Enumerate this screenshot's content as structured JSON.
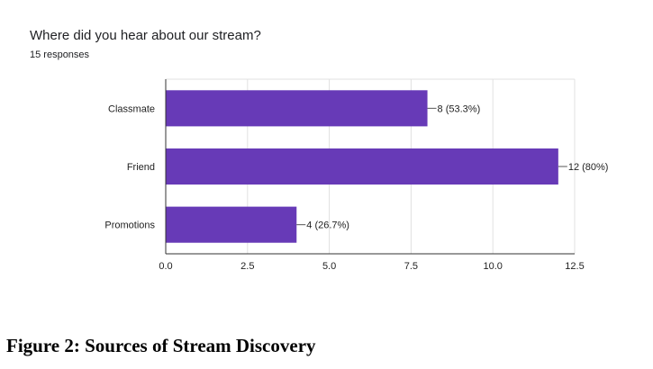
{
  "chart_data": {
    "type": "bar",
    "orientation": "horizontal",
    "title": "Where did you hear about our stream?",
    "subtitle": "15 responses",
    "categories": [
      "Classmate",
      "Friend",
      "Promotions"
    ],
    "values": [
      8,
      12,
      4
    ],
    "data_labels": [
      "8 (53.3%)",
      "12 (80%)",
      "4 (26.7%)"
    ],
    "xlim": [
      0,
      12.5
    ],
    "x_ticks": [
      "0.0",
      "2.5",
      "5.0",
      "7.5",
      "10.0",
      "12.5"
    ],
    "x_tick_values": [
      0,
      2.5,
      5,
      7.5,
      10,
      12.5
    ],
    "grid": true,
    "bar_color": "#673ab7",
    "grid_color": "#e0e0e0",
    "axis_color": "#333333"
  },
  "caption": "Figure 2: Sources of Stream Discovery"
}
